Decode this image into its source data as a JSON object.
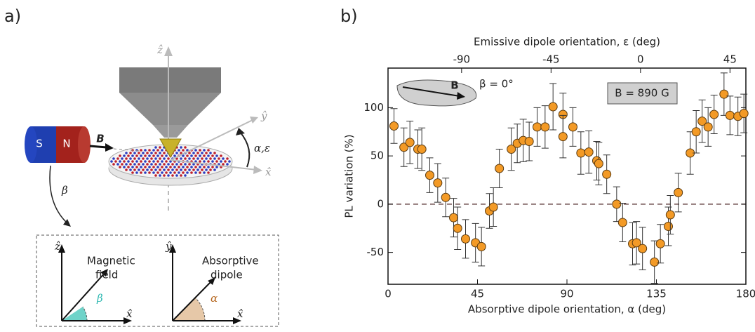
{
  "panel_a": {
    "label": "a)",
    "magnet_s": "S",
    "magnet_n": "N",
    "field_arrow": "B",
    "rotation": "α,ε",
    "tilt": "β",
    "z_axis": "ẑ",
    "y_axis": "ŷ",
    "x_axis": "x̂",
    "inset_left": {
      "z_axis": "ẑ",
      "x_axis": "x̂",
      "lines": [
        "Magnetic",
        "field"
      ],
      "angle": "β"
    },
    "inset_right": {
      "y_axis": "ŷ",
      "x_axis": "x̂",
      "lines": [
        "Absorptive",
        "dipole"
      ],
      "angle": "α"
    }
  },
  "chart_data": {
    "type": "scatter",
    "panel_label": "b)",
    "x2label": "Emissive dipole orientation, ε (deg)",
    "xlabel": "Absorptive dipole orientation, α (deg)",
    "ylabel": "PL variation (%)",
    "x": [
      3,
      8,
      11,
      15,
      17,
      21,
      25,
      29,
      33,
      35,
      39,
      44,
      47,
      51,
      53,
      56,
      62,
      65,
      68,
      71,
      75,
      79,
      83,
      88,
      88,
      93,
      97,
      101,
      105,
      106,
      110,
      115,
      118,
      123,
      125,
      128,
      134,
      137,
      141,
      142,
      146,
      152,
      155,
      158,
      161,
      164,
      169,
      172,
      176,
      179
    ],
    "values": [
      81,
      59,
      64,
      57,
      57,
      30,
      22,
      7,
      -14,
      -25,
      -36,
      -40,
      -44,
      -7,
      -3,
      37,
      57,
      63,
      66,
      65,
      80,
      80,
      101,
      93,
      70,
      80,
      53,
      54,
      45,
      42,
      31,
      0,
      -19,
      -41,
      -40,
      -46,
      -60,
      -41,
      -23,
      -11,
      12,
      53,
      75,
      86,
      80,
      93,
      114,
      92,
      91,
      94
    ],
    "errors": [
      18,
      20,
      22,
      20,
      22,
      18,
      20,
      20,
      20,
      22,
      20,
      20,
      20,
      18,
      20,
      20,
      22,
      20,
      22,
      20,
      20,
      22,
      24,
      22,
      22,
      20,
      22,
      22,
      20,
      22,
      20,
      18,
      20,
      22,
      22,
      22,
      22,
      20,
      20,
      20,
      20,
      22,
      22,
      22,
      20,
      20,
      22,
      20,
      20,
      20
    ],
    "color": "#f39a26",
    "xlim": [
      0,
      180
    ],
    "xticks": [
      0,
      45,
      90,
      135,
      180
    ],
    "x2lim": [
      -127,
      53
    ],
    "x2ticks": [
      -90,
      -45,
      0,
      45
    ],
    "ylim": [
      -83,
      141
    ],
    "yticks": [
      -50,
      0,
      50,
      100
    ],
    "hline": 0,
    "annotations": {
      "inset_vector": "B",
      "inset_angle": "β = 0°",
      "field": "B = 890 G"
    }
  }
}
